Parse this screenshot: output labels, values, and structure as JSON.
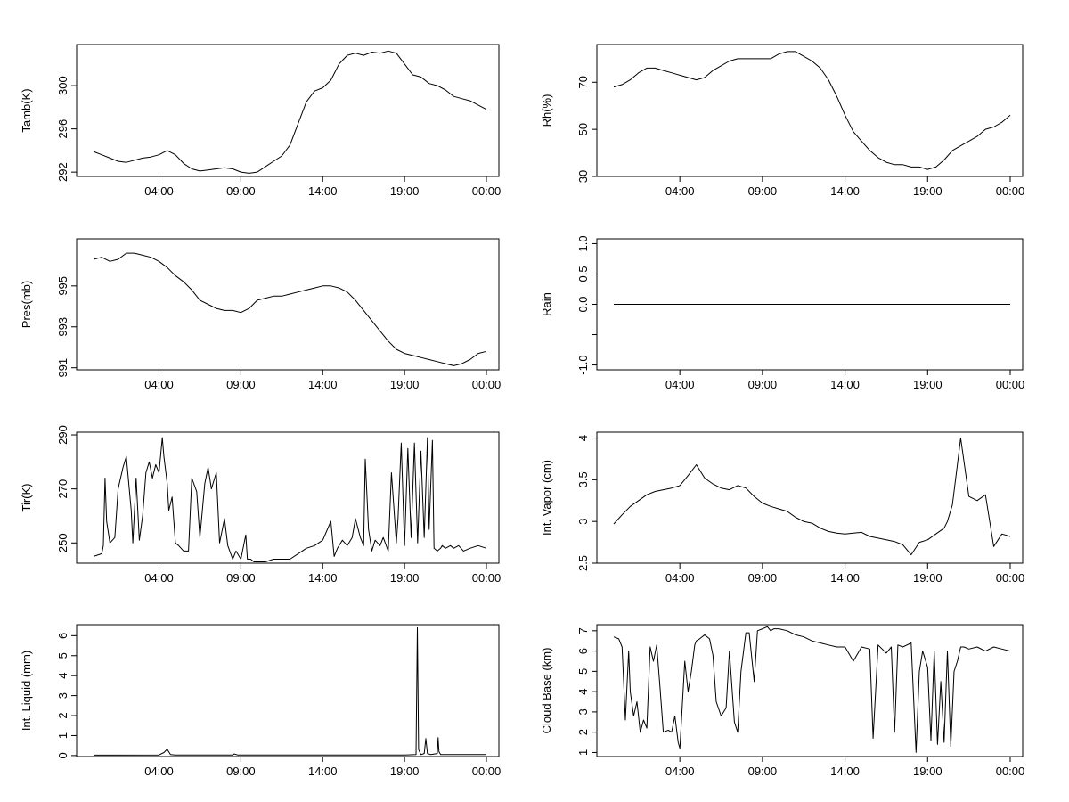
{
  "chart_data": [
    {
      "type": "line",
      "ylabel": "Tamb(K)",
      "xticks": [
        "04:00",
        "09:00",
        "14:00",
        "19:00",
        "00:00"
      ],
      "yticks": [
        292,
        296,
        300
      ],
      "ylim": [
        291.6,
        303.8
      ],
      "x": [
        0.0,
        0.5,
        1.0,
        1.5,
        2.0,
        2.5,
        3.0,
        3.5,
        4.0,
        4.5,
        5.0,
        5.5,
        6.0,
        6.5,
        7.0,
        7.5,
        8.0,
        8.5,
        9.0,
        9.5,
        10.0,
        10.5,
        11.0,
        11.5,
        12.0,
        12.5,
        13.0,
        13.5,
        14.0,
        14.5,
        15.0,
        15.5,
        16.0,
        16.5,
        17.0,
        17.5,
        18.0,
        18.5,
        19.0,
        19.5,
        20.0,
        20.5,
        21.0,
        21.5,
        22.0,
        22.5,
        23.0,
        23.5,
        24.0
      ],
      "values": [
        293.9,
        293.6,
        293.3,
        293.0,
        292.9,
        293.1,
        293.3,
        293.4,
        293.6,
        294.0,
        293.6,
        292.8,
        292.3,
        292.1,
        292.2,
        292.3,
        292.4,
        292.3,
        292.0,
        291.9,
        292.0,
        292.5,
        293.0,
        293.5,
        294.5,
        296.5,
        298.5,
        299.5,
        299.8,
        300.5,
        302.0,
        302.8,
        303.0,
        302.8,
        303.1,
        303.0,
        303.2,
        303.0,
        302.0,
        301.0,
        300.8,
        300.2,
        300.0,
        299.6,
        299.0,
        298.8,
        298.6,
        298.2,
        297.8
      ]
    },
    {
      "type": "line",
      "ylabel": "Rh(%)",
      "xticks": [
        "04:00",
        "09:00",
        "14:00",
        "19:00",
        "00:00"
      ],
      "yticks": [
        30,
        50,
        70
      ],
      "ylim": [
        30,
        86
      ],
      "x": [
        0.0,
        0.5,
        1.0,
        1.5,
        2.0,
        2.5,
        3.0,
        3.5,
        4.0,
        4.5,
        5.0,
        5.5,
        6.0,
        6.5,
        7.0,
        7.5,
        8.0,
        8.5,
        9.0,
        9.5,
        10.0,
        10.5,
        11.0,
        11.5,
        12.0,
        12.5,
        13.0,
        13.5,
        14.0,
        14.5,
        15.0,
        15.5,
        16.0,
        16.5,
        17.0,
        17.5,
        18.0,
        18.5,
        19.0,
        19.5,
        20.0,
        20.5,
        21.0,
        21.5,
        22.0,
        22.5,
        23.0,
        23.5,
        24.0
      ],
      "values": [
        68,
        69,
        71,
        74,
        76,
        76,
        75,
        74,
        73,
        72,
        71,
        72,
        75,
        77,
        79,
        80,
        80,
        80,
        80,
        80,
        82,
        83,
        83,
        81,
        79,
        76,
        71,
        64,
        56,
        49,
        45,
        41,
        38,
        36,
        35,
        35,
        34,
        34,
        33,
        34,
        37,
        41,
        43,
        45,
        47,
        50,
        51,
        53,
        56
      ]
    },
    {
      "type": "line",
      "ylabel": "Pres(mb)",
      "xticks": [
        "04:00",
        "09:00",
        "14:00",
        "19:00",
        "00:00"
      ],
      "yticks": [
        991,
        993,
        995
      ],
      "ylim": [
        990.9,
        997.3
      ],
      "x": [
        0.0,
        0.5,
        1.0,
        1.5,
        2.0,
        2.5,
        3.0,
        3.5,
        4.0,
        4.5,
        5.0,
        5.5,
        6.0,
        6.5,
        7.0,
        7.5,
        8.0,
        8.5,
        9.0,
        9.5,
        10.0,
        10.5,
        11.0,
        11.5,
        12.0,
        12.5,
        13.0,
        13.5,
        14.0,
        14.5,
        15.0,
        15.5,
        16.0,
        16.5,
        17.0,
        17.5,
        18.0,
        18.5,
        19.0,
        19.5,
        20.0,
        20.5,
        21.0,
        21.5,
        22.0,
        22.5,
        23.0,
        23.5,
        24.0
      ],
      "values": [
        996.3,
        996.4,
        996.2,
        996.3,
        996.6,
        996.6,
        996.5,
        996.4,
        996.2,
        995.9,
        995.5,
        995.2,
        994.8,
        994.3,
        994.1,
        993.9,
        993.8,
        993.8,
        993.7,
        993.9,
        994.3,
        994.4,
        994.5,
        994.5,
        994.6,
        994.7,
        994.8,
        994.9,
        995.0,
        995.0,
        994.9,
        994.7,
        994.3,
        993.8,
        993.3,
        992.8,
        992.3,
        991.9,
        991.7,
        991.6,
        991.5,
        991.4,
        991.3,
        991.2,
        991.1,
        991.2,
        991.4,
        991.7,
        991.8
      ]
    },
    {
      "type": "line",
      "ylabel": "Rain",
      "xticks": [
        "04:00",
        "09:00",
        "14:00",
        "19:00",
        "00:00"
      ],
      "yticks": [
        -1.0,
        -0.5,
        0.0,
        0.5,
        1.0
      ],
      "ytick_labels": [
        "-1.0",
        "",
        "0.0",
        "0.5",
        "1.0"
      ],
      "ylim": [
        -1.08,
        1.08
      ],
      "x": [
        0.0,
        24.0
      ],
      "values": [
        0.0,
        0.0
      ]
    },
    {
      "type": "line",
      "ylabel": "Tir(K)",
      "xticks": [
        "04:00",
        "09:00",
        "14:00",
        "19:00",
        "00:00"
      ],
      "yticks": [
        250,
        270,
        290
      ],
      "ylim": [
        242.5,
        291
      ],
      "x": [
        0.0,
        0.5,
        0.6,
        0.7,
        0.8,
        1.0,
        1.3,
        1.5,
        1.8,
        2.0,
        2.3,
        2.4,
        2.6,
        2.8,
        3.0,
        3.2,
        3.4,
        3.6,
        3.8,
        4.0,
        4.2,
        4.3,
        4.5,
        4.6,
        4.8,
        5.0,
        5.2,
        5.5,
        5.8,
        6.0,
        6.3,
        6.5,
        6.8,
        7.0,
        7.2,
        7.5,
        7.7,
        8.0,
        8.2,
        8.5,
        8.7,
        9.0,
        9.3,
        9.4,
        9.6,
        9.8,
        10.0,
        10.5,
        11.0,
        11.5,
        12.0,
        12.5,
        13.0,
        13.5,
        14.0,
        14.5,
        14.7,
        14.9,
        15.2,
        15.5,
        15.8,
        16.0,
        16.3,
        16.5,
        16.6,
        16.8,
        17.0,
        17.2,
        17.5,
        17.7,
        18.0,
        18.2,
        18.5,
        18.6,
        18.8,
        19.0,
        19.2,
        19.4,
        19.6,
        19.8,
        20.0,
        20.2,
        20.4,
        20.5,
        20.7,
        20.8,
        21.0,
        21.2,
        21.3,
        21.5,
        21.8,
        22.0,
        22.3,
        22.6,
        23.0,
        23.5,
        24.0
      ],
      "values": [
        245,
        246,
        249,
        274,
        258,
        250,
        252,
        270,
        278,
        282,
        262,
        250,
        274,
        251,
        260,
        276,
        280,
        274,
        279,
        276,
        289,
        282,
        272,
        262,
        267,
        250,
        249,
        247,
        247,
        274,
        269,
        252,
        272,
        278,
        270,
        276,
        250,
        259,
        249,
        244,
        247,
        244,
        253,
        244,
        244,
        243,
        243,
        243,
        244,
        244,
        244,
        246,
        248,
        249,
        251,
        258,
        245,
        248,
        251,
        249,
        252,
        259,
        252,
        249,
        281,
        255,
        247,
        251,
        249,
        252,
        247,
        276,
        250,
        259,
        287,
        249,
        285,
        252,
        287,
        250,
        284,
        252,
        289,
        255,
        288,
        248,
        247,
        248,
        249,
        248,
        249,
        248,
        249,
        247,
        248,
        249,
        248
      ]
    },
    {
      "type": "line",
      "ylabel": "Int. Vapor (cm)",
      "xticks": [
        "04:00",
        "09:00",
        "14:00",
        "19:00",
        "00:00"
      ],
      "yticks": [
        2.5,
        3.0,
        3.5,
        4.0
      ],
      "ylim": [
        2.5,
        4.07
      ],
      "x": [
        0.0,
        0.5,
        1.0,
        1.5,
        2.0,
        2.5,
        3.0,
        3.5,
        4.0,
        4.5,
        5.0,
        5.5,
        6.0,
        6.5,
        7.0,
        7.5,
        8.0,
        8.5,
        9.0,
        9.5,
        10.0,
        10.5,
        11.0,
        11.5,
        12.0,
        12.5,
        13.0,
        13.5,
        14.0,
        14.5,
        15.0,
        15.5,
        16.0,
        16.5,
        17.0,
        17.5,
        18.0,
        18.5,
        19.0,
        19.5,
        20.0,
        20.2,
        20.5,
        21.0,
        21.5,
        22.0,
        22.5,
        23.0,
        23.5,
        24.0
      ],
      "values": [
        2.97,
        3.08,
        3.18,
        3.25,
        3.32,
        3.36,
        3.38,
        3.4,
        3.43,
        3.55,
        3.68,
        3.52,
        3.45,
        3.4,
        3.38,
        3.43,
        3.4,
        3.3,
        3.22,
        3.18,
        3.15,
        3.12,
        3.05,
        3.0,
        2.98,
        2.92,
        2.88,
        2.86,
        2.85,
        2.86,
        2.87,
        2.82,
        2.8,
        2.78,
        2.76,
        2.72,
        2.6,
        2.75,
        2.78,
        2.85,
        2.92,
        3.0,
        3.2,
        4.0,
        3.3,
        3.25,
        3.32,
        2.7,
        2.85,
        2.82
      ]
    },
    {
      "type": "line",
      "ylabel": "Int. Liquid (mm)",
      "xticks": [
        "04:00",
        "09:00",
        "14:00",
        "19:00",
        "00:00"
      ],
      "yticks": [
        0,
        1,
        2,
        3,
        4,
        5,
        6
      ],
      "ylim": [
        -0.05,
        6.55
      ],
      "x": [
        0.0,
        4.0,
        4.3,
        4.5,
        4.7,
        5.0,
        8.5,
        8.6,
        8.8,
        19.0,
        19.7,
        19.78,
        19.86,
        20.0,
        20.2,
        20.3,
        20.4,
        20.6,
        21.0,
        21.05,
        21.1,
        21.2,
        22.0,
        24.0
      ],
      "values": [
        0.02,
        0.03,
        0.15,
        0.32,
        0.05,
        0.03,
        0.03,
        0.08,
        0.03,
        0.03,
        0.05,
        6.4,
        0.3,
        0.05,
        0.1,
        0.85,
        0.1,
        0.05,
        0.1,
        0.9,
        0.2,
        0.05,
        0.05,
        0.05
      ]
    },
    {
      "type": "line",
      "ylabel": "Cloud Base (km)",
      "xticks": [
        "04:00",
        "09:00",
        "14:00",
        "19:00",
        "00:00"
      ],
      "yticks": [
        1,
        2,
        3,
        4,
        5,
        6,
        7
      ],
      "ylim": [
        0.8,
        7.3
      ],
      "x": [
        0.0,
        0.3,
        0.5,
        0.7,
        0.9,
        1.0,
        1.2,
        1.4,
        1.6,
        1.8,
        2.0,
        2.2,
        2.4,
        2.6,
        2.8,
        3.0,
        3.3,
        3.5,
        3.7,
        3.9,
        4.0,
        4.3,
        4.5,
        4.7,
        4.9,
        5.0,
        5.2,
        5.5,
        5.8,
        6.0,
        6.2,
        6.5,
        6.8,
        7.0,
        7.3,
        7.5,
        7.7,
        8.0,
        8.2,
        8.5,
        8.7,
        9.0,
        9.3,
        9.5,
        9.7,
        10.0,
        10.5,
        11.0,
        11.5,
        12.0,
        12.5,
        13.0,
        13.5,
        14.0,
        14.5,
        15.0,
        15.5,
        15.7,
        16.0,
        16.5,
        16.8,
        17.0,
        17.2,
        17.5,
        18.0,
        18.3,
        18.5,
        18.7,
        19.0,
        19.2,
        19.4,
        19.6,
        19.8,
        20.0,
        20.2,
        20.4,
        20.6,
        20.8,
        21.0,
        21.2,
        21.5,
        22.0,
        22.5,
        23.0,
        23.5,
        24.0
      ],
      "values": [
        6.7,
        6.6,
        6.2,
        2.6,
        6.0,
        4.0,
        2.8,
        3.5,
        2.0,
        2.6,
        2.2,
        6.2,
        5.5,
        6.3,
        4.2,
        2.0,
        2.1,
        2.0,
        2.8,
        1.5,
        1.2,
        5.5,
        4.0,
        5.0,
        6.3,
        6.5,
        6.6,
        6.8,
        6.6,
        5.8,
        3.5,
        2.8,
        3.2,
        6.0,
        2.5,
        2.0,
        5.0,
        6.9,
        6.9,
        4.5,
        7.0,
        7.1,
        7.2,
        7.0,
        7.1,
        7.1,
        7.0,
        6.8,
        6.7,
        6.5,
        6.4,
        6.3,
        6.2,
        6.2,
        5.5,
        6.2,
        6.1,
        1.7,
        6.3,
        5.9,
        6.2,
        2.0,
        6.3,
        6.2,
        6.4,
        1.0,
        5.0,
        6.0,
        5.2,
        1.6,
        6.0,
        1.4,
        4.5,
        1.5,
        6.0,
        1.3,
        5.0,
        5.5,
        6.2,
        6.2,
        6.1,
        6.2,
        6.0,
        6.2,
        6.1,
        6.0
      ]
    }
  ]
}
